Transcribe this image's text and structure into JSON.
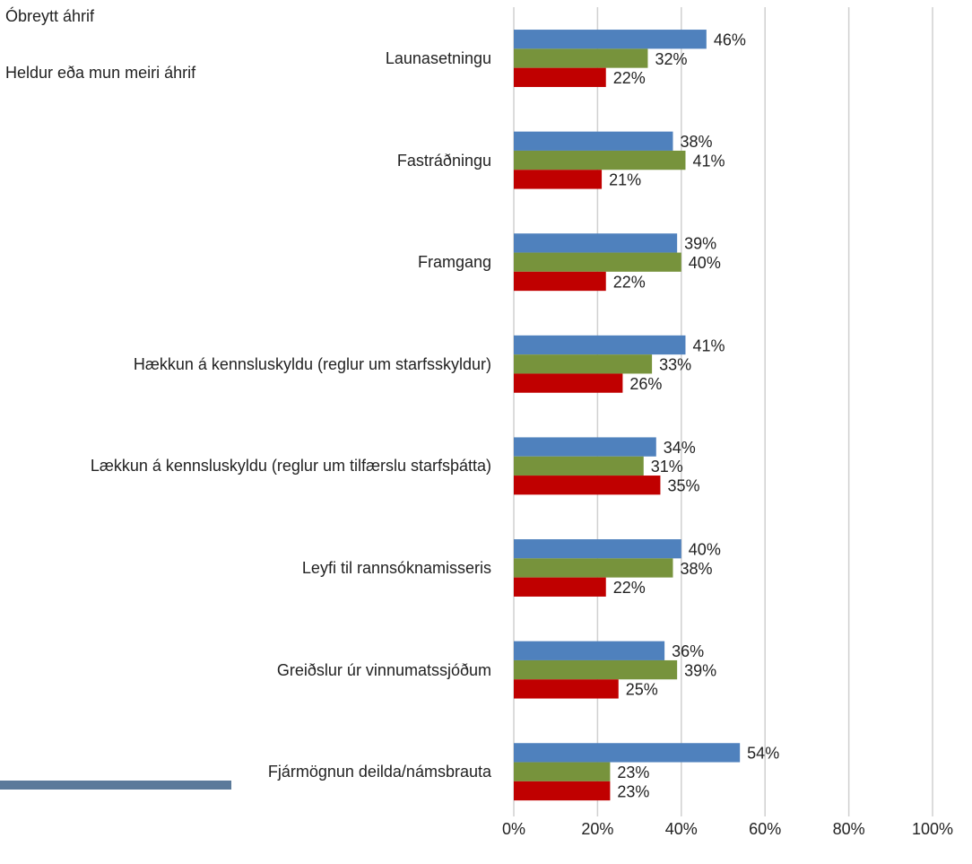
{
  "chart_data": {
    "type": "hbar",
    "legend_texts": [
      "Óbreytt áhrif",
      "Heldur eða mun meiri áhrif"
    ],
    "categories": [
      "Launasetningu",
      "Fastráðningu",
      "Framgang",
      "Hækkun á kennsluskyldu (reglur um starfsskyldur)",
      "Lækkun á kennsluskyldu (reglur um tilfærslu starfsþátta)",
      "Leyfi til rannsóknamisseris",
      "Greiðslur úr vinnumatssjóðum",
      "Fjármögnun deilda/námsbrauta"
    ],
    "series": [
      {
        "color": "#4f81bd",
        "values": [
          46,
          38,
          39,
          41,
          34,
          40,
          36,
          54
        ],
        "value_labels": [
          "46%",
          "38%",
          "39%",
          "41%",
          "34%",
          "40%",
          "36%",
          "54%"
        ]
      },
      {
        "color": "#77933c",
        "values": [
          32,
          41,
          40,
          33,
          31,
          38,
          39,
          23
        ],
        "value_labels": [
          "32%",
          "41%",
          "40%",
          "33%",
          "31%",
          "38%",
          "39%",
          "23%"
        ]
      },
      {
        "color": "#c00000",
        "values": [
          22,
          21,
          22,
          26,
          35,
          22,
          25,
          23
        ],
        "value_labels": [
          "22%",
          "21%",
          "22%",
          "26%",
          "35%",
          "22%",
          "25%",
          "23%"
        ]
      }
    ],
    "xlim": [
      0,
      100
    ],
    "xticks": [
      {
        "value": 0,
        "label": "0%"
      },
      {
        "value": 20,
        "label": "20%"
      },
      {
        "value": 40,
        "label": "40%"
      },
      {
        "value": 60,
        "label": "60%"
      },
      {
        "value": 80,
        "label": "80%"
      },
      {
        "value": 100,
        "label": "100%"
      }
    ],
    "grid": true
  }
}
